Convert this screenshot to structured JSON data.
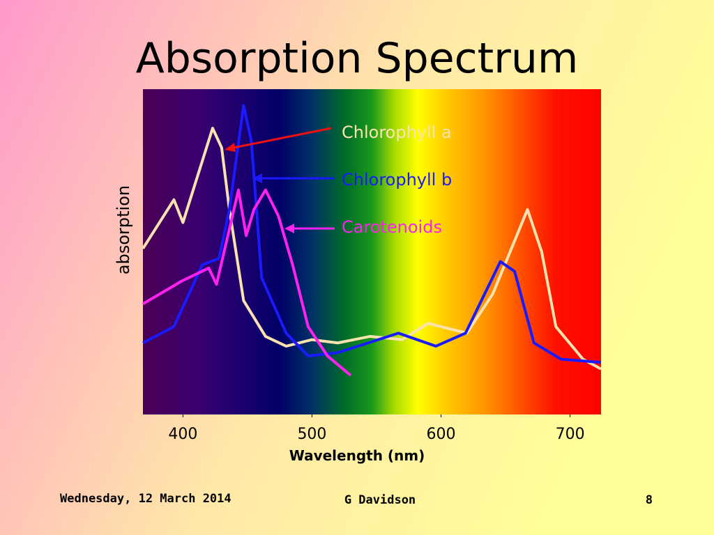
{
  "chart_data": {
    "type": "line",
    "title": "Absorption Spectrum",
    "x_label": "Wavelength (nm)",
    "y_label": "absorption",
    "xlim": [
      369,
      724
    ],
    "ylim": [
      0,
      100
    ],
    "xticks": [
      400,
      500,
      600,
      700
    ],
    "series": [
      {
        "name": "Chlorophyll a",
        "color": "#fbe3b0",
        "x": [
          369,
          393,
          400,
          423,
          430,
          436,
          447,
          464,
          480,
          500,
          520,
          545,
          570,
          590,
          620,
          640,
          667,
          678,
          689,
          710,
          724
        ],
        "values": [
          51,
          66,
          59,
          88,
          82,
          63,
          35,
          24,
          21,
          23,
          22,
          24,
          23,
          28,
          25,
          37,
          63,
          50,
          27,
          17,
          14
        ]
      },
      {
        "name": "Chlorophyll b",
        "color": "#1a1aff",
        "x": [
          369,
          393,
          415,
          428,
          436,
          447,
          453,
          461,
          480,
          497,
          520,
          567,
          596,
          619,
          646,
          657,
          672,
          693,
          724
        ],
        "values": [
          22,
          27,
          46,
          48,
          63,
          95,
          84,
          42,
          25,
          18,
          19,
          25,
          21,
          25,
          47,
          44,
          22,
          17,
          16
        ]
      },
      {
        "name": "Carotenoids",
        "color": "#ff22ee",
        "x": [
          369,
          399,
          420,
          426,
          436,
          443,
          449,
          455,
          464,
          474,
          485,
          497,
          512,
          530
        ],
        "values": [
          34,
          41,
          45,
          40,
          57,
          69,
          55,
          63,
          69,
          61,
          46,
          27,
          18,
          12
        ]
      }
    ]
  },
  "footer": {
    "date": "Wednesday, 12 March 2014",
    "author": "G Davidson",
    "page": "8"
  }
}
